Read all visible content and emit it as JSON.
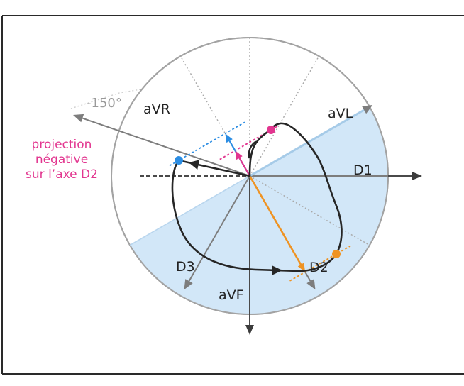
{
  "diagram": {
    "angle_label": "-150°",
    "axes": {
      "avr": "aVR",
      "avl": "aVL",
      "d1": "D1",
      "d2": "D2",
      "d3": "D3",
      "avf": "aVF"
    },
    "annotation": [
      "projection",
      "négative",
      "sur l’axe D2"
    ]
  },
  "colors": {
    "shaded_hemisphere": "#d2e7f8",
    "loop": "#262626",
    "projection_pink": "#e2358f",
    "projection_blue": "#2b8de3",
    "projection_orange": "#ef9322",
    "axis": "#7d7d7d"
  }
}
